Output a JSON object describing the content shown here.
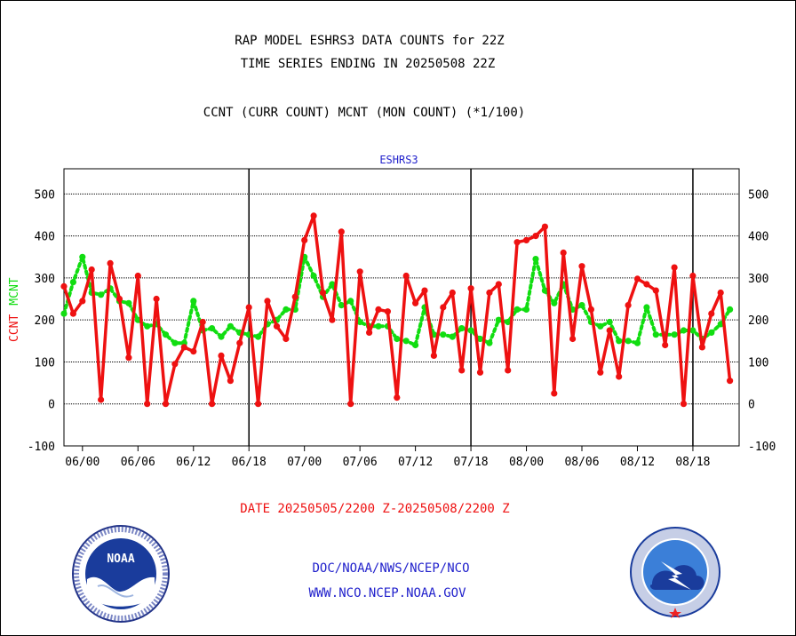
{
  "header": {
    "line1": "RAP MODEL ESHRS3 DATA COUNTS for 22Z",
    "line2": "TIME SERIES ENDING IN 20250508 22Z",
    "line3": "CCNT (CURR COUNT) MCNT (MON COUNT) (*1/100)"
  },
  "footer": {
    "date_range": "DATE 20250505/2200 Z-20250508/2200 Z",
    "org_path": "DOC/NOAA/NWS/NCEP/NCO",
    "website": "WWW.NCO.NCEP.NOAA.GOV"
  },
  "logos": {
    "left": {
      "icon": "noaa-logo",
      "text": "NOAA"
    },
    "right": {
      "icon": "nws-logo"
    }
  },
  "colors": {
    "ccnt": "#ee1111",
    "mcnt": "#11dd11",
    "blue_text": "#2222cc",
    "red_text": "#ee1111"
  },
  "chart_data": {
    "type": "line",
    "title": "ESHRS3",
    "ylabel_ccnt": "CCNT",
    "ylabel_mcnt": "MCNT",
    "ylim": [
      -100,
      560
    ],
    "yticks": [
      "-100",
      "0",
      "100",
      "200",
      "300",
      "400",
      "500"
    ],
    "xticks": [
      "06/00",
      "06/06",
      "06/12",
      "06/18",
      "07/00",
      "07/06",
      "07/12",
      "07/18",
      "08/00",
      "08/06",
      "08/12",
      "08/18"
    ],
    "grid": true,
    "day_separators": [
      "06/18",
      "07/18",
      "08/18"
    ],
    "x_range_hours": [
      -2,
      71
    ],
    "series": [
      {
        "name": "CCNT",
        "style": "solid",
        "values": [
          280,
          215,
          245,
          320,
          10,
          335,
          250,
          110,
          305,
          0,
          250,
          0,
          95,
          135,
          125,
          195,
          0,
          115,
          55,
          145,
          230,
          0,
          245,
          185,
          155,
          255,
          390,
          448,
          265,
          200,
          410,
          0,
          315,
          170,
          225,
          220,
          15,
          305,
          240,
          270,
          115,
          230,
          265,
          80,
          275,
          75,
          265,
          285,
          80,
          385,
          390,
          400,
          422,
          25,
          360,
          155,
          328,
          225,
          75,
          175,
          65,
          235,
          298,
          285,
          270,
          140,
          325,
          0,
          305,
          135,
          215,
          265,
          55
        ]
      },
      {
        "name": "MCNT",
        "style": "dotted",
        "values": [
          215,
          290,
          350,
          265,
          260,
          275,
          245,
          240,
          200,
          185,
          190,
          165,
          145,
          145,
          245,
          175,
          180,
          160,
          185,
          170,
          165,
          160,
          190,
          200,
          225,
          225,
          350,
          305,
          255,
          285,
          235,
          245,
          195,
          185,
          185,
          185,
          155,
          150,
          140,
          230,
          165,
          165,
          160,
          180,
          175,
          155,
          145,
          200,
          195,
          225,
          225,
          345,
          270,
          240,
          285,
          225,
          235,
          195,
          185,
          195,
          150,
          150,
          145,
          230,
          165,
          165,
          165,
          175,
          175,
          155,
          170,
          190,
          225
        ]
      }
    ]
  }
}
